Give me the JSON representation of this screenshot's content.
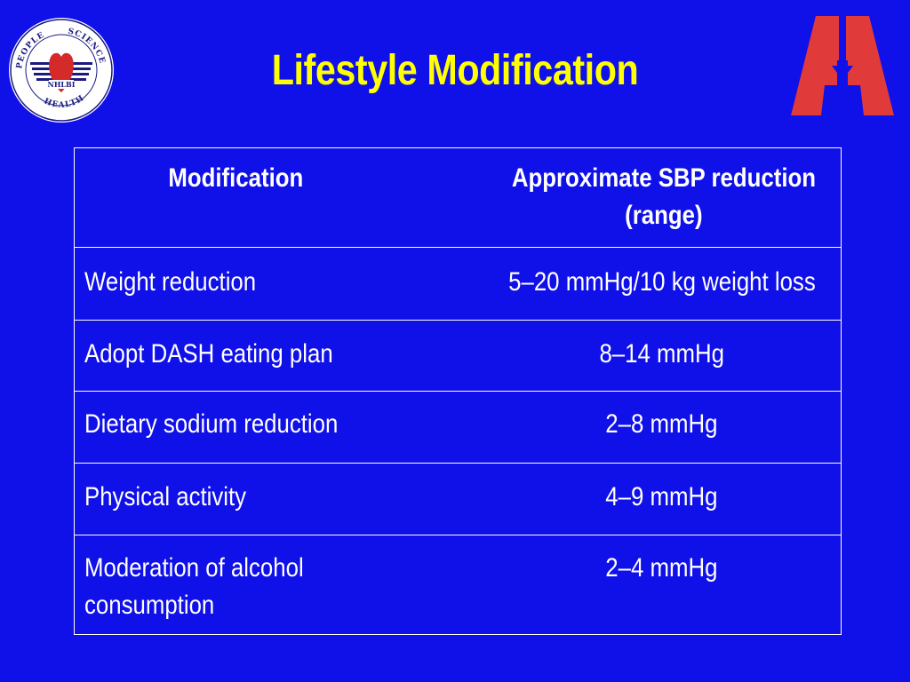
{
  "slide": {
    "title": "Lifestyle Modification",
    "logo_left": {
      "arc_top_left": "PEOPLE",
      "arc_top_right": "SCIENCE",
      "arc_bottom": "HEALTH",
      "center": "NHLBI"
    },
    "colors": {
      "background": "#1010e8",
      "title": "#ffff00",
      "logo_red": "#e03a3a",
      "text": "#ffffff"
    }
  },
  "table": {
    "headers": [
      "Modification",
      "Approximate SBP reduction (range)"
    ],
    "header_line1": "Approximate SBP reduction",
    "header_line2": "(range)",
    "rows": [
      {
        "modification": "Weight reduction",
        "reduction": "5–20 mmHg/10 kg weight loss"
      },
      {
        "modification": "Adopt DASH eating plan",
        "reduction": "8–14 mmHg"
      },
      {
        "modification": "Dietary sodium reduction",
        "reduction": "2–8 mmHg"
      },
      {
        "modification": "Physical activity",
        "reduction": "4–9 mmHg"
      },
      {
        "modification": "Moderation of alcohol consumption",
        "modification_line1": "Moderation of alcohol",
        "modification_line2": "consumption",
        "reduction": "2–4 mmHg"
      }
    ]
  }
}
